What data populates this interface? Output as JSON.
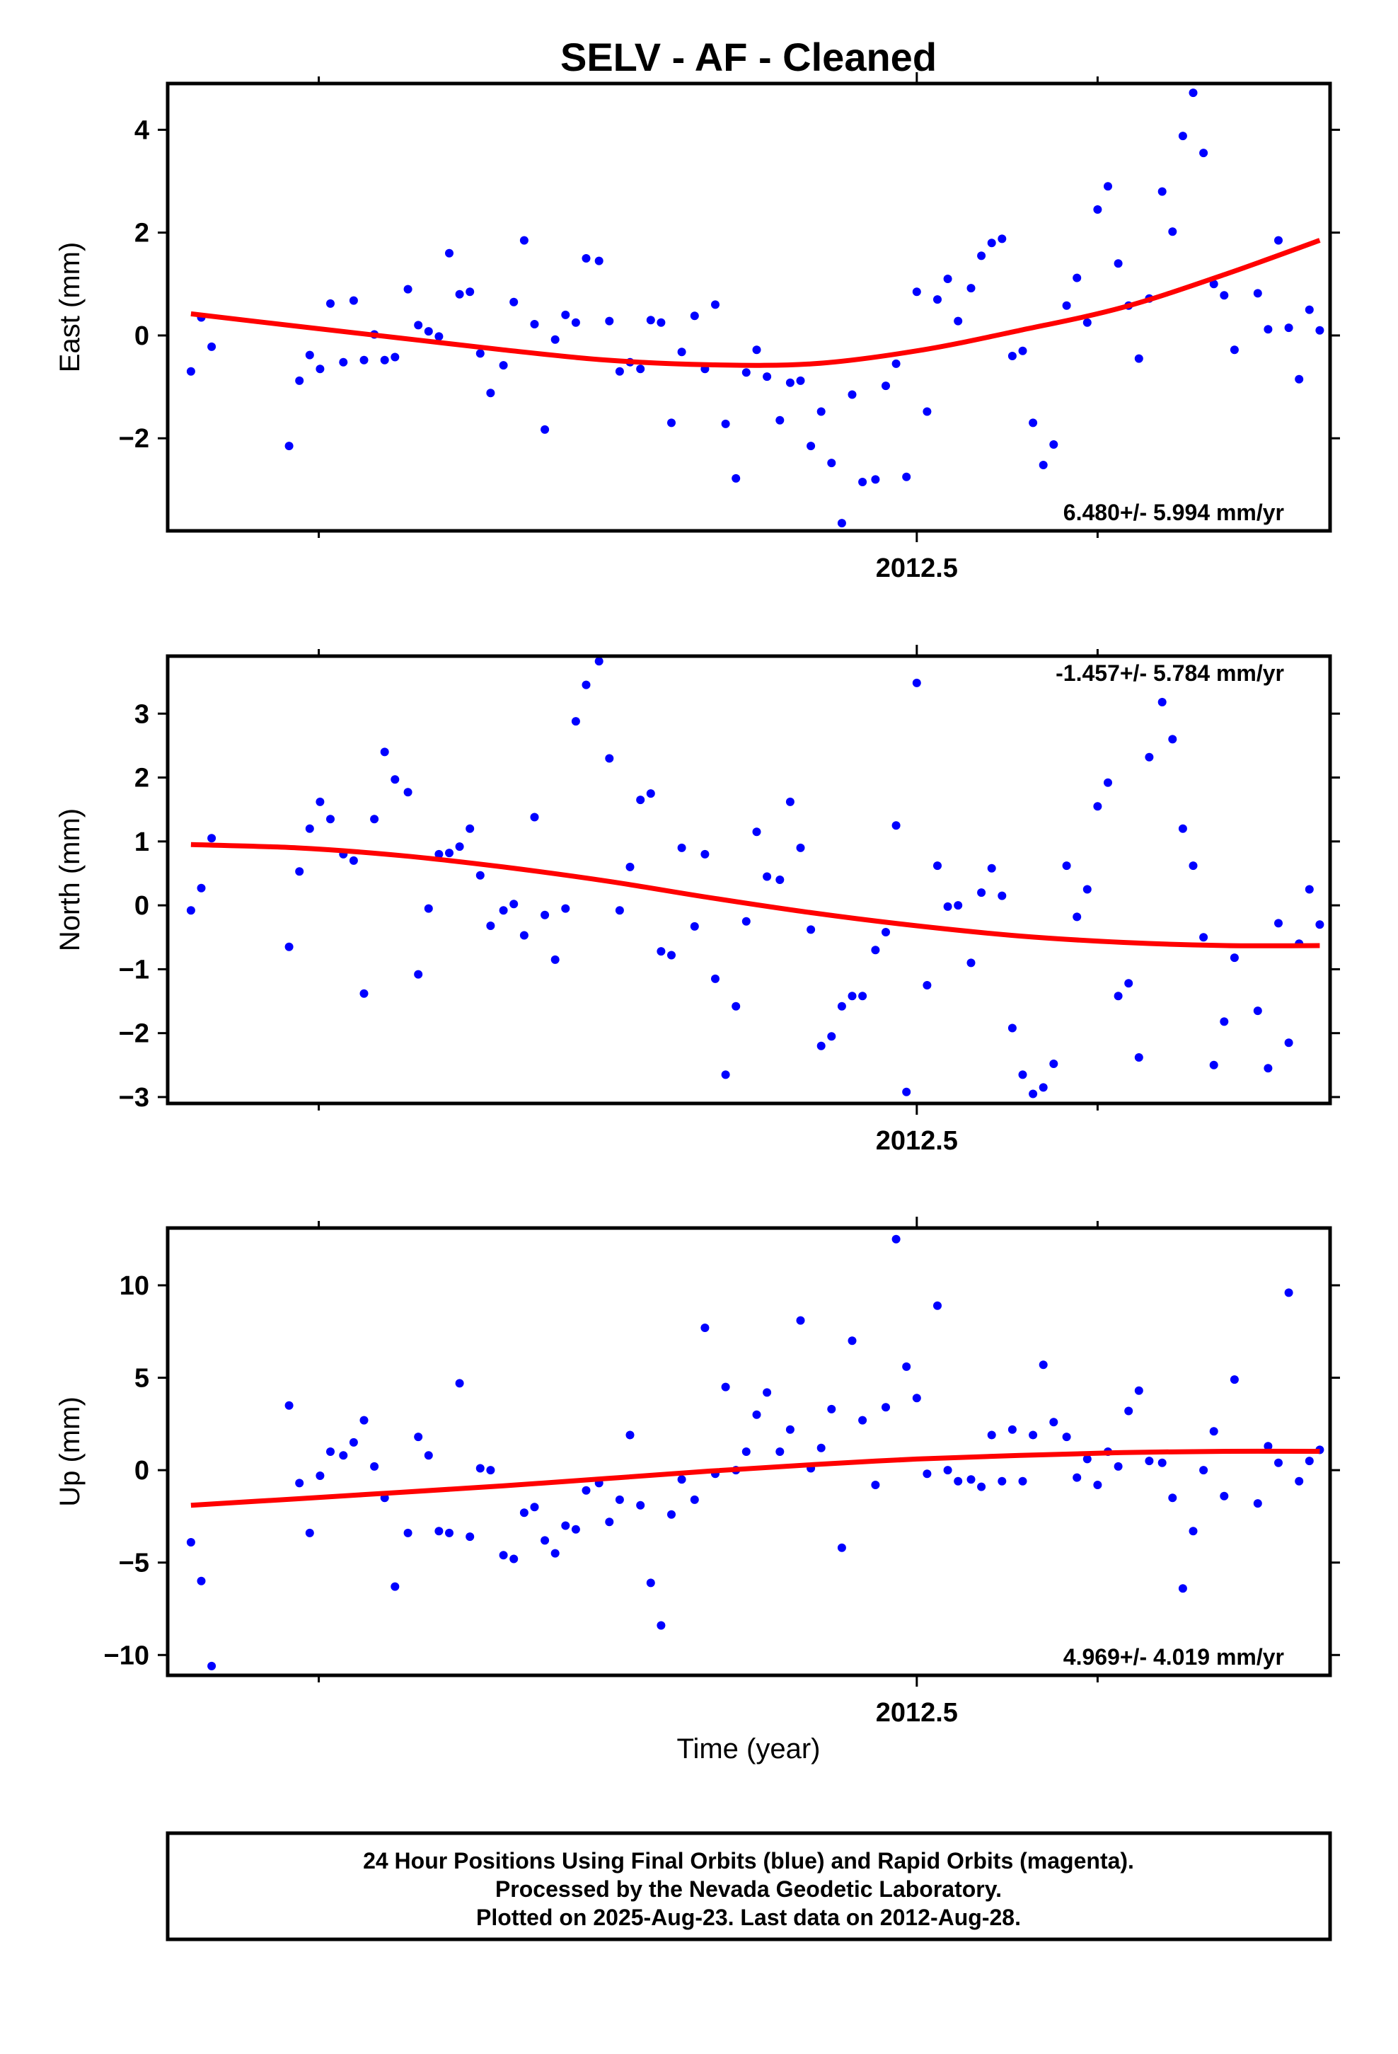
{
  "chart_data": {
    "title": "SELV  - AF - Cleaned",
    "xlabel": "Time (year)",
    "x_tick_label": "2012.5",
    "footer": {
      "line1": "24 Hour Positions Using Final Orbits (blue) and Rapid Orbits (magenta).",
      "line2": "Processed by the Nevada Geodetic Laboratory.",
      "line3": "Plotted on 2025-Aug-23. Last data on 2012-Aug-28."
    },
    "colors": {
      "points": "#0000ff",
      "fit": "#ff0000",
      "axes": "#000000"
    },
    "panels": [
      {
        "type": "scatter",
        "ylabel": "East (mm)",
        "rate": "6.480+/- 5.994 mm/yr",
        "rate_position": "bottom-right",
        "xlim": [
          2012.21,
          2012.66
        ],
        "ylim": [
          -3.8,
          4.9
        ],
        "yticks": [
          -2,
          0,
          2,
          4
        ],
        "x": [
          2012.219,
          2012.223,
          2012.227,
          2012.257,
          2012.261,
          2012.265,
          2012.269,
          2012.273,
          2012.278,
          2012.282,
          2012.286,
          2012.29,
          2012.294,
          2012.298,
          2012.303,
          2012.307,
          2012.311,
          2012.315,
          2012.319,
          2012.323,
          2012.327,
          2012.331,
          2012.335,
          2012.34,
          2012.344,
          2012.348,
          2012.352,
          2012.356,
          2012.36,
          2012.364,
          2012.368,
          2012.372,
          2012.377,
          2012.381,
          2012.385,
          2012.389,
          2012.393,
          2012.397,
          2012.401,
          2012.405,
          2012.409,
          2012.414,
          2012.418,
          2012.422,
          2012.426,
          2012.43,
          2012.434,
          2012.438,
          2012.442,
          2012.447,
          2012.451,
          2012.455,
          2012.459,
          2012.463,
          2012.467,
          2012.471,
          2012.475,
          2012.479,
          2012.484,
          2012.488,
          2012.492,
          2012.496,
          2012.5,
          2012.504,
          2012.508,
          2012.512,
          2012.516,
          2012.521,
          2012.525,
          2012.529,
          2012.533,
          2012.537,
          2012.541,
          2012.545,
          2012.549,
          2012.553,
          2012.558,
          2012.562,
          2012.566,
          2012.57,
          2012.574,
          2012.578,
          2012.582,
          2012.586,
          2012.59,
          2012.595,
          2012.599,
          2012.603,
          2012.607,
          2012.611,
          2012.615,
          2012.619,
          2012.623,
          2012.632,
          2012.636,
          2012.64,
          2012.644,
          2012.648,
          2012.652,
          2012.656
        ],
        "y": [
          -0.7,
          0.35,
          -0.22,
          -2.15,
          -0.88,
          -0.38,
          -0.65,
          0.62,
          -0.52,
          0.68,
          -0.48,
          0.02,
          -0.48,
          -0.42,
          0.9,
          0.2,
          0.08,
          -0.02,
          1.6,
          0.8,
          0.85,
          -0.35,
          -1.12,
          -0.58,
          0.65,
          1.85,
          0.22,
          -1.83,
          -0.08,
          0.4,
          0.25,
          1.5,
          1.45,
          0.28,
          -0.7,
          -0.52,
          -0.65,
          0.3,
          0.25,
          -1.7,
          -0.32,
          0.38,
          -0.65,
          0.6,
          -1.72,
          -2.78,
          -0.72,
          -0.28,
          -0.8,
          -1.65,
          -0.92,
          -0.88,
          -2.15,
          -1.48,
          -2.48,
          -3.65,
          -1.15,
          -2.85,
          -2.8,
          -0.98,
          -0.55,
          -2.75,
          0.85,
          -1.48,
          0.7,
          1.1,
          0.28,
          0.92,
          1.55,
          1.8,
          1.88,
          -0.4,
          -0.3,
          -1.7,
          -2.52,
          -2.12,
          0.58,
          1.12,
          0.25,
          2.45,
          2.9,
          1.4,
          0.58,
          -0.45,
          0.72,
          2.8,
          2.02,
          3.88,
          4.72,
          3.55,
          1.0,
          0.78,
          -0.28,
          0.82,
          0.12,
          1.85,
          0.15,
          -0.85,
          0.5,
          0.1
        ],
        "fit": {
          "x": [
            2012.219,
            2012.26,
            2012.3,
            2012.34,
            2012.38,
            2012.42,
            2012.46,
            2012.5,
            2012.54,
            2012.58,
            2012.62,
            2012.656
          ],
          "y": [
            0.42,
            0.18,
            -0.05,
            -0.28,
            -0.48,
            -0.57,
            -0.55,
            -0.3,
            0.1,
            0.55,
            1.2,
            1.85
          ]
        }
      },
      {
        "type": "scatter",
        "ylabel": "North (mm)",
        "rate": "-1.457+/- 5.784 mm/yr",
        "rate_position": "top-right",
        "xlim": [
          2012.21,
          2012.66
        ],
        "ylim": [
          -3.1,
          3.9
        ],
        "yticks": [
          -3,
          -2,
          -1,
          0,
          1,
          2,
          3
        ],
        "x": [
          2012.219,
          2012.223,
          2012.227,
          2012.257,
          2012.261,
          2012.265,
          2012.269,
          2012.273,
          2012.278,
          2012.282,
          2012.286,
          2012.29,
          2012.294,
          2012.298,
          2012.303,
          2012.307,
          2012.311,
          2012.315,
          2012.319,
          2012.323,
          2012.327,
          2012.331,
          2012.335,
          2012.34,
          2012.344,
          2012.348,
          2012.352,
          2012.356,
          2012.36,
          2012.364,
          2012.368,
          2012.372,
          2012.377,
          2012.381,
          2012.385,
          2012.389,
          2012.393,
          2012.397,
          2012.401,
          2012.405,
          2012.409,
          2012.414,
          2012.418,
          2012.422,
          2012.426,
          2012.43,
          2012.434,
          2012.438,
          2012.442,
          2012.447,
          2012.451,
          2012.455,
          2012.459,
          2012.463,
          2012.467,
          2012.471,
          2012.475,
          2012.479,
          2012.484,
          2012.488,
          2012.492,
          2012.496,
          2012.5,
          2012.504,
          2012.508,
          2012.512,
          2012.516,
          2012.521,
          2012.525,
          2012.529,
          2012.533,
          2012.537,
          2012.541,
          2012.545,
          2012.549,
          2012.553,
          2012.558,
          2012.562,
          2012.566,
          2012.57,
          2012.574,
          2012.578,
          2012.582,
          2012.586,
          2012.59,
          2012.595,
          2012.599,
          2012.603,
          2012.607,
          2012.611,
          2012.615,
          2012.619,
          2012.623,
          2012.632,
          2012.636,
          2012.64,
          2012.644,
          2012.648,
          2012.652,
          2012.656
        ],
        "y": [
          -0.08,
          0.27,
          1.05,
          -0.65,
          0.53,
          1.2,
          1.62,
          1.35,
          0.8,
          0.7,
          -1.38,
          1.35,
          2.4,
          1.97,
          1.77,
          -1.08,
          -0.05,
          0.8,
          0.82,
          0.92,
          1.2,
          0.47,
          -0.32,
          -0.08,
          0.02,
          -0.47,
          1.38,
          -0.15,
          -0.85,
          -0.05,
          2.88,
          3.45,
          3.82,
          2.3,
          -0.08,
          0.6,
          1.65,
          1.75,
          -0.72,
          -0.78,
          0.9,
          -0.33,
          0.8,
          -1.15,
          -2.65,
          -1.58,
          -0.25,
          1.15,
          0.45,
          0.4,
          1.62,
          0.9,
          -0.38,
          -2.2,
          -2.05,
          -1.58,
          -1.42,
          -1.42,
          -0.7,
          -0.42,
          1.25,
          -2.92,
          3.48,
          -1.25,
          0.62,
          -0.02,
          0.0,
          -0.9,
          0.2,
          0.58,
          0.15,
          -1.92,
          -2.65,
          -2.95,
          -2.85,
          -2.48,
          0.62,
          -0.18,
          0.25,
          1.55,
          1.92,
          -1.42,
          -1.22,
          -2.38,
          2.32,
          3.18,
          2.6,
          1.2,
          0.62,
          -0.5,
          -2.5,
          -1.82,
          -0.82,
          -1.65,
          -2.55,
          -0.28,
          -2.15,
          -0.6,
          0.25,
          -0.3
        ],
        "fit": {
          "x": [
            2012.219,
            2012.26,
            2012.3,
            2012.34,
            2012.38,
            2012.42,
            2012.46,
            2012.5,
            2012.54,
            2012.58,
            2012.62,
            2012.656
          ],
          "y": [
            0.95,
            0.9,
            0.78,
            0.6,
            0.38,
            0.12,
            -0.12,
            -0.32,
            -0.48,
            -0.58,
            -0.63,
            -0.63
          ]
        }
      },
      {
        "type": "scatter",
        "ylabel": "Up (mm)",
        "rate": "4.969+/- 4.019 mm/yr",
        "rate_position": "bottom-right",
        "xlim": [
          2012.21,
          2012.66
        ],
        "ylim": [
          -11.1,
          13.1
        ],
        "yticks": [
          -10,
          -5,
          0,
          5,
          10
        ],
        "x": [
          2012.219,
          2012.223,
          2012.227,
          2012.257,
          2012.261,
          2012.265,
          2012.269,
          2012.273,
          2012.278,
          2012.282,
          2012.286,
          2012.29,
          2012.294,
          2012.298,
          2012.303,
          2012.307,
          2012.311,
          2012.315,
          2012.319,
          2012.323,
          2012.327,
          2012.331,
          2012.335,
          2012.34,
          2012.344,
          2012.348,
          2012.352,
          2012.356,
          2012.36,
          2012.364,
          2012.368,
          2012.372,
          2012.377,
          2012.381,
          2012.385,
          2012.389,
          2012.393,
          2012.397,
          2012.401,
          2012.405,
          2012.409,
          2012.414,
          2012.418,
          2012.422,
          2012.426,
          2012.43,
          2012.434,
          2012.438,
          2012.442,
          2012.447,
          2012.451,
          2012.455,
          2012.459,
          2012.463,
          2012.467,
          2012.471,
          2012.475,
          2012.479,
          2012.484,
          2012.488,
          2012.492,
          2012.496,
          2012.5,
          2012.504,
          2012.508,
          2012.512,
          2012.516,
          2012.521,
          2012.525,
          2012.529,
          2012.533,
          2012.537,
          2012.541,
          2012.545,
          2012.549,
          2012.553,
          2012.558,
          2012.562,
          2012.566,
          2012.57,
          2012.574,
          2012.578,
          2012.582,
          2012.586,
          2012.59,
          2012.595,
          2012.599,
          2012.603,
          2012.607,
          2012.611,
          2012.615,
          2012.619,
          2012.623,
          2012.632,
          2012.636,
          2012.64,
          2012.644,
          2012.648,
          2012.652,
          2012.656
        ],
        "y": [
          -3.9,
          -6.0,
          -10.6,
          3.5,
          -0.7,
          -3.4,
          -0.3,
          1.0,
          0.8,
          1.5,
          2.7,
          0.2,
          -1.5,
          -6.3,
          -3.4,
          1.8,
          0.8,
          -3.3,
          -3.4,
          4.7,
          -3.6,
          0.1,
          0.0,
          -4.6,
          -4.8,
          -2.3,
          -2.0,
          -3.8,
          -4.5,
          -3.0,
          -3.2,
          -1.1,
          -0.7,
          -2.8,
          -1.6,
          1.9,
          -1.9,
          -6.1,
          -8.4,
          -2.4,
          -0.5,
          -1.6,
          7.7,
          -0.2,
          4.5,
          0.0,
          1.0,
          3.0,
          4.2,
          1.0,
          2.2,
          8.1,
          0.1,
          1.2,
          3.3,
          -4.2,
          7.0,
          2.7,
          -0.8,
          3.4,
          12.5,
          5.6,
          3.9,
          -0.2,
          8.9,
          0.0,
          -0.6,
          -0.5,
          -0.9,
          1.9,
          -0.6,
          2.2,
          -0.6,
          1.9,
          5.7,
          2.6,
          1.8,
          -0.4,
          0.6,
          -0.8,
          1.0,
          0.2,
          3.2,
          4.3,
          0.5,
          0.4,
          -1.5,
          -6.4,
          -3.3,
          0.0,
          2.1,
          -1.4,
          4.9,
          -1.8,
          1.3,
          0.4,
          9.6,
          -0.6,
          0.5,
          1.1
        ],
        "fit": {
          "x": [
            2012.219,
            2012.26,
            2012.3,
            2012.34,
            2012.38,
            2012.42,
            2012.46,
            2012.5,
            2012.54,
            2012.58,
            2012.62,
            2012.656
          ],
          "y": [
            -1.9,
            -1.55,
            -1.2,
            -0.85,
            -0.45,
            -0.05,
            0.3,
            0.6,
            0.8,
            0.95,
            1.02,
            1.02
          ]
        }
      }
    ]
  }
}
